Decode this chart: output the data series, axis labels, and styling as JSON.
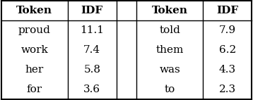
{
  "headers": [
    "Token",
    "IDF",
    "Token",
    "IDF"
  ],
  "rows": [
    [
      "proud",
      "11.1",
      "told",
      "7.9"
    ],
    [
      "work",
      "7.4",
      "them",
      "6.2"
    ],
    [
      "her",
      "5.8",
      "was",
      "4.3"
    ],
    [
      "for",
      "3.6",
      "to",
      "2.3"
    ]
  ],
  "header_fontsize": 11,
  "body_fontsize": 11,
  "background_color": "#ffffff",
  "text_color": "#000000",
  "line_color": "#000000",
  "lw_outer": 1.5,
  "lw_inner": 1.0,
  "lw_mid": 2.0,
  "figsize": [
    3.58,
    1.42
  ],
  "dpi": 100
}
